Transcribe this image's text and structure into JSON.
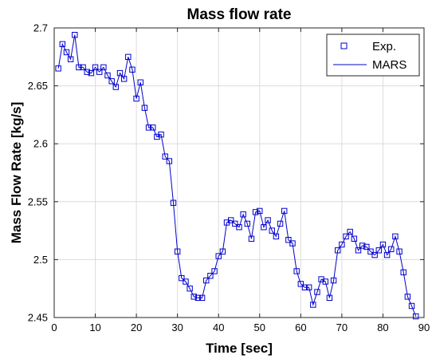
{
  "chart_data": {
    "type": "line",
    "title": "Mass flow rate",
    "xlabel": "Time [sec]",
    "ylabel": "Mass Flow Rate [kg/s]",
    "xlim": [
      0,
      90
    ],
    "ylim": [
      2.45,
      2.7
    ],
    "x_ticks": [
      0,
      10,
      20,
      30,
      40,
      50,
      60,
      70,
      80,
      90
    ],
    "y_ticks": [
      2.45,
      2.5,
      2.55,
      2.6,
      2.65,
      2.7
    ],
    "grid": true,
    "legend_position": "top-right",
    "series": [
      {
        "name": "Exp.",
        "marker": "square",
        "line": false,
        "color": "#0000cc",
        "x": [
          1,
          2,
          3,
          4,
          5,
          6,
          7,
          8,
          9,
          10,
          11,
          12,
          13,
          14,
          15,
          16,
          17,
          18,
          19,
          20,
          21,
          22,
          23,
          24,
          25,
          26,
          27,
          28,
          29,
          30,
          31,
          32,
          33,
          34,
          35,
          36,
          37,
          38,
          39,
          40,
          41,
          42,
          43,
          44,
          45,
          46,
          47,
          48,
          49,
          50,
          51,
          52,
          53,
          54,
          55,
          56,
          57,
          58,
          59,
          60,
          61,
          62,
          63,
          64,
          65,
          66,
          67,
          68,
          69,
          70,
          71,
          72,
          73,
          74,
          75,
          76,
          77,
          78,
          79,
          80,
          81,
          82,
          83,
          84,
          85,
          86,
          87,
          88
        ],
        "y": [
          2.665,
          2.686,
          2.679,
          2.673,
          2.694,
          2.666,
          2.666,
          2.662,
          2.661,
          2.666,
          2.662,
          2.666,
          2.659,
          2.654,
          2.649,
          2.661,
          2.656,
          2.675,
          2.664,
          2.639,
          2.653,
          2.631,
          2.614,
          2.614,
          2.606,
          2.608,
          2.589,
          2.585,
          2.549,
          2.507,
          2.484,
          2.481,
          2.475,
          2.468,
          2.467,
          2.467,
          2.482,
          2.486,
          2.49,
          2.503,
          2.507,
          2.532,
          2.534,
          2.531,
          2.528,
          2.539,
          2.531,
          2.518,
          2.541,
          2.542,
          2.528,
          2.534,
          2.525,
          2.52,
          2.531,
          2.542,
          2.517,
          2.514,
          2.49,
          2.479,
          2.476,
          2.476,
          2.461,
          2.472,
          2.483,
          2.481,
          2.467,
          2.482,
          2.508,
          2.513,
          2.52,
          2.524,
          2.518,
          2.508,
          2.512,
          2.511,
          2.507,
          2.504,
          2.508,
          2.513,
          2.504,
          2.509,
          2.52,
          2.507,
          2.489,
          2.468,
          2.46,
          2.451
        ]
      },
      {
        "name": "MARS",
        "marker": "none",
        "line": true,
        "color": "#0000cc",
        "x": [
          1,
          2,
          3,
          4,
          5,
          6,
          7,
          8,
          9,
          10,
          11,
          12,
          13,
          14,
          15,
          16,
          17,
          18,
          19,
          20,
          21,
          22,
          23,
          24,
          25,
          26,
          27,
          28,
          29,
          30,
          31,
          32,
          33,
          34,
          35,
          36,
          37,
          38,
          39,
          40,
          41,
          42,
          43,
          44,
          45,
          46,
          47,
          48,
          49,
          50,
          51,
          52,
          53,
          54,
          55,
          56,
          57,
          58,
          59,
          60,
          61,
          62,
          63,
          64,
          65,
          66,
          67,
          68,
          69,
          70,
          71,
          72,
          73,
          74,
          75,
          76,
          77,
          78,
          79,
          80,
          81,
          82,
          83,
          84,
          85,
          86,
          87,
          88
        ],
        "y": [
          2.665,
          2.686,
          2.679,
          2.673,
          2.694,
          2.666,
          2.666,
          2.662,
          2.661,
          2.666,
          2.662,
          2.666,
          2.659,
          2.654,
          2.649,
          2.661,
          2.656,
          2.675,
          2.664,
          2.639,
          2.653,
          2.631,
          2.614,
          2.614,
          2.606,
          2.608,
          2.589,
          2.585,
          2.549,
          2.507,
          2.484,
          2.481,
          2.475,
          2.468,
          2.467,
          2.467,
          2.482,
          2.486,
          2.49,
          2.503,
          2.507,
          2.532,
          2.534,
          2.531,
          2.528,
          2.539,
          2.531,
          2.518,
          2.541,
          2.542,
          2.528,
          2.534,
          2.525,
          2.52,
          2.531,
          2.542,
          2.517,
          2.514,
          2.49,
          2.479,
          2.476,
          2.476,
          2.461,
          2.472,
          2.483,
          2.481,
          2.467,
          2.482,
          2.508,
          2.513,
          2.52,
          2.524,
          2.518,
          2.508,
          2.512,
          2.511,
          2.507,
          2.504,
          2.508,
          2.513,
          2.504,
          2.509,
          2.52,
          2.507,
          2.489,
          2.468,
          2.46,
          2.451
        ]
      }
    ],
    "colors": {
      "axis": "#262626",
      "grid": "#dcdcdc",
      "series": "#0000cc",
      "background": "#ffffff"
    }
  }
}
